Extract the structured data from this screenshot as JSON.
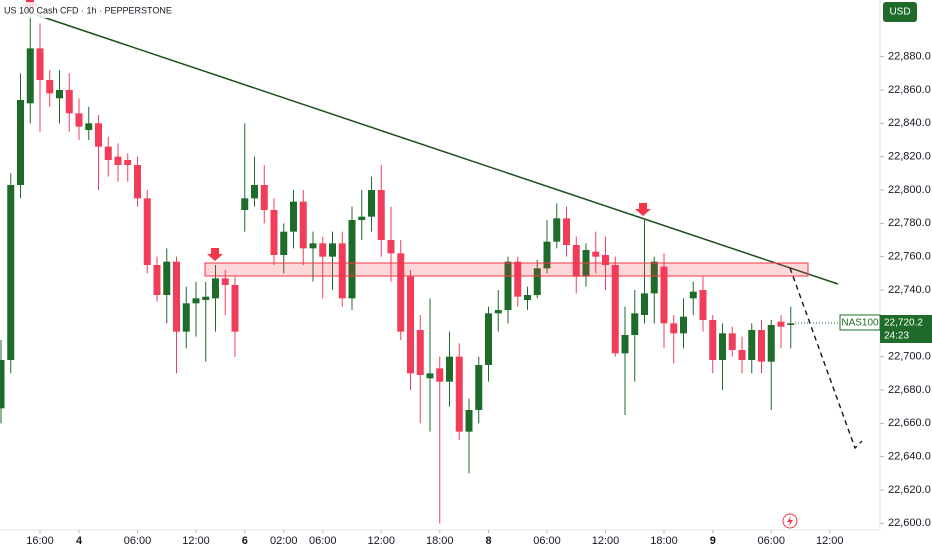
{
  "chart_data": {
    "type": "candlestick",
    "title": "US 100 Cash CFD · 1h · PEPPERSTONE",
    "currency": "USD",
    "up_color": "#1e6b2a",
    "down_color": "#f23d5a",
    "open": [
      22669,
      22698,
      22803,
      22852,
      22885,
      22866,
      22855,
      22860,
      22846,
      22836,
      22840,
      22826,
      22820,
      22818,
      22815,
      22795,
      22755,
      22737,
      22757,
      22715,
      22732,
      22734,
      22735,
      22747,
      22743,
      22788,
      22795,
      22803,
      22788,
      22761,
      22775,
      22793,
      22765,
      22768,
      22760,
      22768,
      22735,
      22782,
      22784,
      22800,
      22770,
      22762,
      22748,
      22716,
      22687,
      22693,
      22685,
      22700,
      22655,
      22668,
      22695,
      22726,
      22728,
      22757,
      22734,
      22737,
      22753,
      22769,
      22783,
      22767,
      22748,
      22763,
      22761,
      22755,
      22702,
      22713,
      22725,
      22738,
      22754,
      22720,
      22714,
      22735,
      22740,
      22722,
      22698,
      22714,
      22704,
      22698,
      22716,
      22697,
      22721,
      22719
    ],
    "high": [
      22710,
      22810,
      22870,
      22905,
      22900,
      22872,
      22872,
      22870,
      22855,
      22850,
      22845,
      22832,
      22828,
      22822,
      22820,
      22800,
      22760,
      22765,
      22760,
      22742,
      22745,
      22745,
      22755,
      22752,
      22748,
      22840,
      22820,
      22815,
      22795,
      22780,
      22800,
      22800,
      22775,
      22772,
      22775,
      22775,
      22790,
      22800,
      22808,
      22815,
      22790,
      22770,
      22752,
      22725,
      22735,
      22700,
      22715,
      22708,
      22675,
      22700,
      22730,
      22740,
      22760,
      22760,
      22742,
      22758,
      22782,
      22792,
      22790,
      22772,
      22768,
      22775,
      22772,
      22760,
      22730,
      22740,
      22782,
      22760,
      22762,
      22725,
      22735,
      22745,
      22748,
      22725,
      22720,
      22718,
      22712,
      22720,
      22722,
      22722,
      22725,
      22730
    ],
    "low": [
      22660,
      22690,
      22795,
      22840,
      22835,
      22850,
      22840,
      22835,
      22830,
      22830,
      22800,
      22808,
      22805,
      22805,
      22790,
      22750,
      22733,
      22720,
      22690,
      22705,
      22712,
      22697,
      22715,
      22725,
      22700,
      22775,
      22790,
      22780,
      22755,
      22750,
      22765,
      22755,
      22745,
      22735,
      22740,
      22730,
      22728,
      22770,
      22775,
      22760,
      22745,
      22710,
      22680,
      22660,
      22655,
      22600,
      22670,
      22650,
      22630,
      22660,
      22685,
      22715,
      22720,
      22730,
      22728,
      22735,
      22750,
      22765,
      22760,
      22738,
      22742,
      22750,
      22740,
      22700,
      22665,
      22685,
      22720,
      22720,
      22705,
      22696,
      22705,
      22725,
      22715,
      22690,
      22680,
      22700,
      22690,
      22690,
      22690,
      22668,
      22705,
      22705
    ],
    "close": [
      22698,
      22803,
      22854,
      22885,
      22866,
      22858,
      22860,
      22846,
      22838,
      22840,
      22826,
      22818,
      22815,
      22815,
      22795,
      22755,
      22737,
      22757,
      22715,
      22732,
      22735,
      22736,
      22747,
      22743,
      22715,
      22795,
      22803,
      22788,
      22761,
      22775,
      22793,
      22765,
      22768,
      22760,
      22768,
      22735,
      22782,
      22784,
      22800,
      22770,
      22762,
      22715,
      22690,
      22689,
      22690,
      22685,
      22700,
      22655,
      22668,
      22695,
      22726,
      22728,
      22757,
      22736,
      22737,
      22753,
      22769,
      22783,
      22767,
      22748,
      22764,
      22760,
      22755,
      22702,
      22713,
      22726,
      22738,
      22757,
      22720,
      22714,
      22724,
      22739,
      22722,
      22698,
      22714,
      22704,
      22698,
      22716,
      22697,
      22719,
      22718,
      22720
    ],
    "ylim": [
      22596,
      22914
    ],
    "yticks": [
      {
        "value": 22600,
        "label": "22,600.0"
      },
      {
        "value": 22620,
        "label": "22,620.0"
      },
      {
        "value": 22640,
        "label": "22,640.0"
      },
      {
        "value": 22660,
        "label": "22,660.0"
      },
      {
        "value": 22680,
        "label": "22,680.0"
      },
      {
        "value": 22700,
        "label": "22,700.0"
      },
      {
        "value": 22740,
        "label": "22,740.0"
      },
      {
        "value": 22760,
        "label": "22,760.0"
      },
      {
        "value": 22780,
        "label": "22,780.0"
      },
      {
        "value": 22800,
        "label": "22,800.0"
      },
      {
        "value": 22820,
        "label": "22,820.0"
      },
      {
        "value": 22840,
        "label": "22,840.0"
      },
      {
        "value": 22860,
        "label": "22,860.0"
      },
      {
        "value": 22880,
        "label": "22,880.0"
      }
    ],
    "xticks": [
      {
        "value": 4,
        "label": "16:00"
      },
      {
        "value": 8,
        "label": "4"
      },
      {
        "value": 14,
        "label": "06:00"
      },
      {
        "value": 20,
        "label": "12:00"
      },
      {
        "value": 25,
        "label": "6"
      },
      {
        "value": 29,
        "label": "02:00"
      },
      {
        "value": 33,
        "label": "06:00"
      },
      {
        "value": 39,
        "label": "12:00"
      },
      {
        "value": 45,
        "label": "18:00"
      },
      {
        "value": 50,
        "label": "8"
      },
      {
        "value": 56,
        "label": "06:00"
      },
      {
        "value": 62,
        "label": "12:00"
      },
      {
        "value": 68,
        "label": "18:00"
      },
      {
        "value": 73,
        "label": "9"
      },
      {
        "value": 79,
        "label": "06:00"
      },
      {
        "value": 85,
        "label": "12:00"
      }
    ],
    "last_price": {
      "value": 22720.2,
      "label": "22,720.2"
    },
    "countdown": "24:23",
    "symbol_tag": "NAS100"
  }
}
